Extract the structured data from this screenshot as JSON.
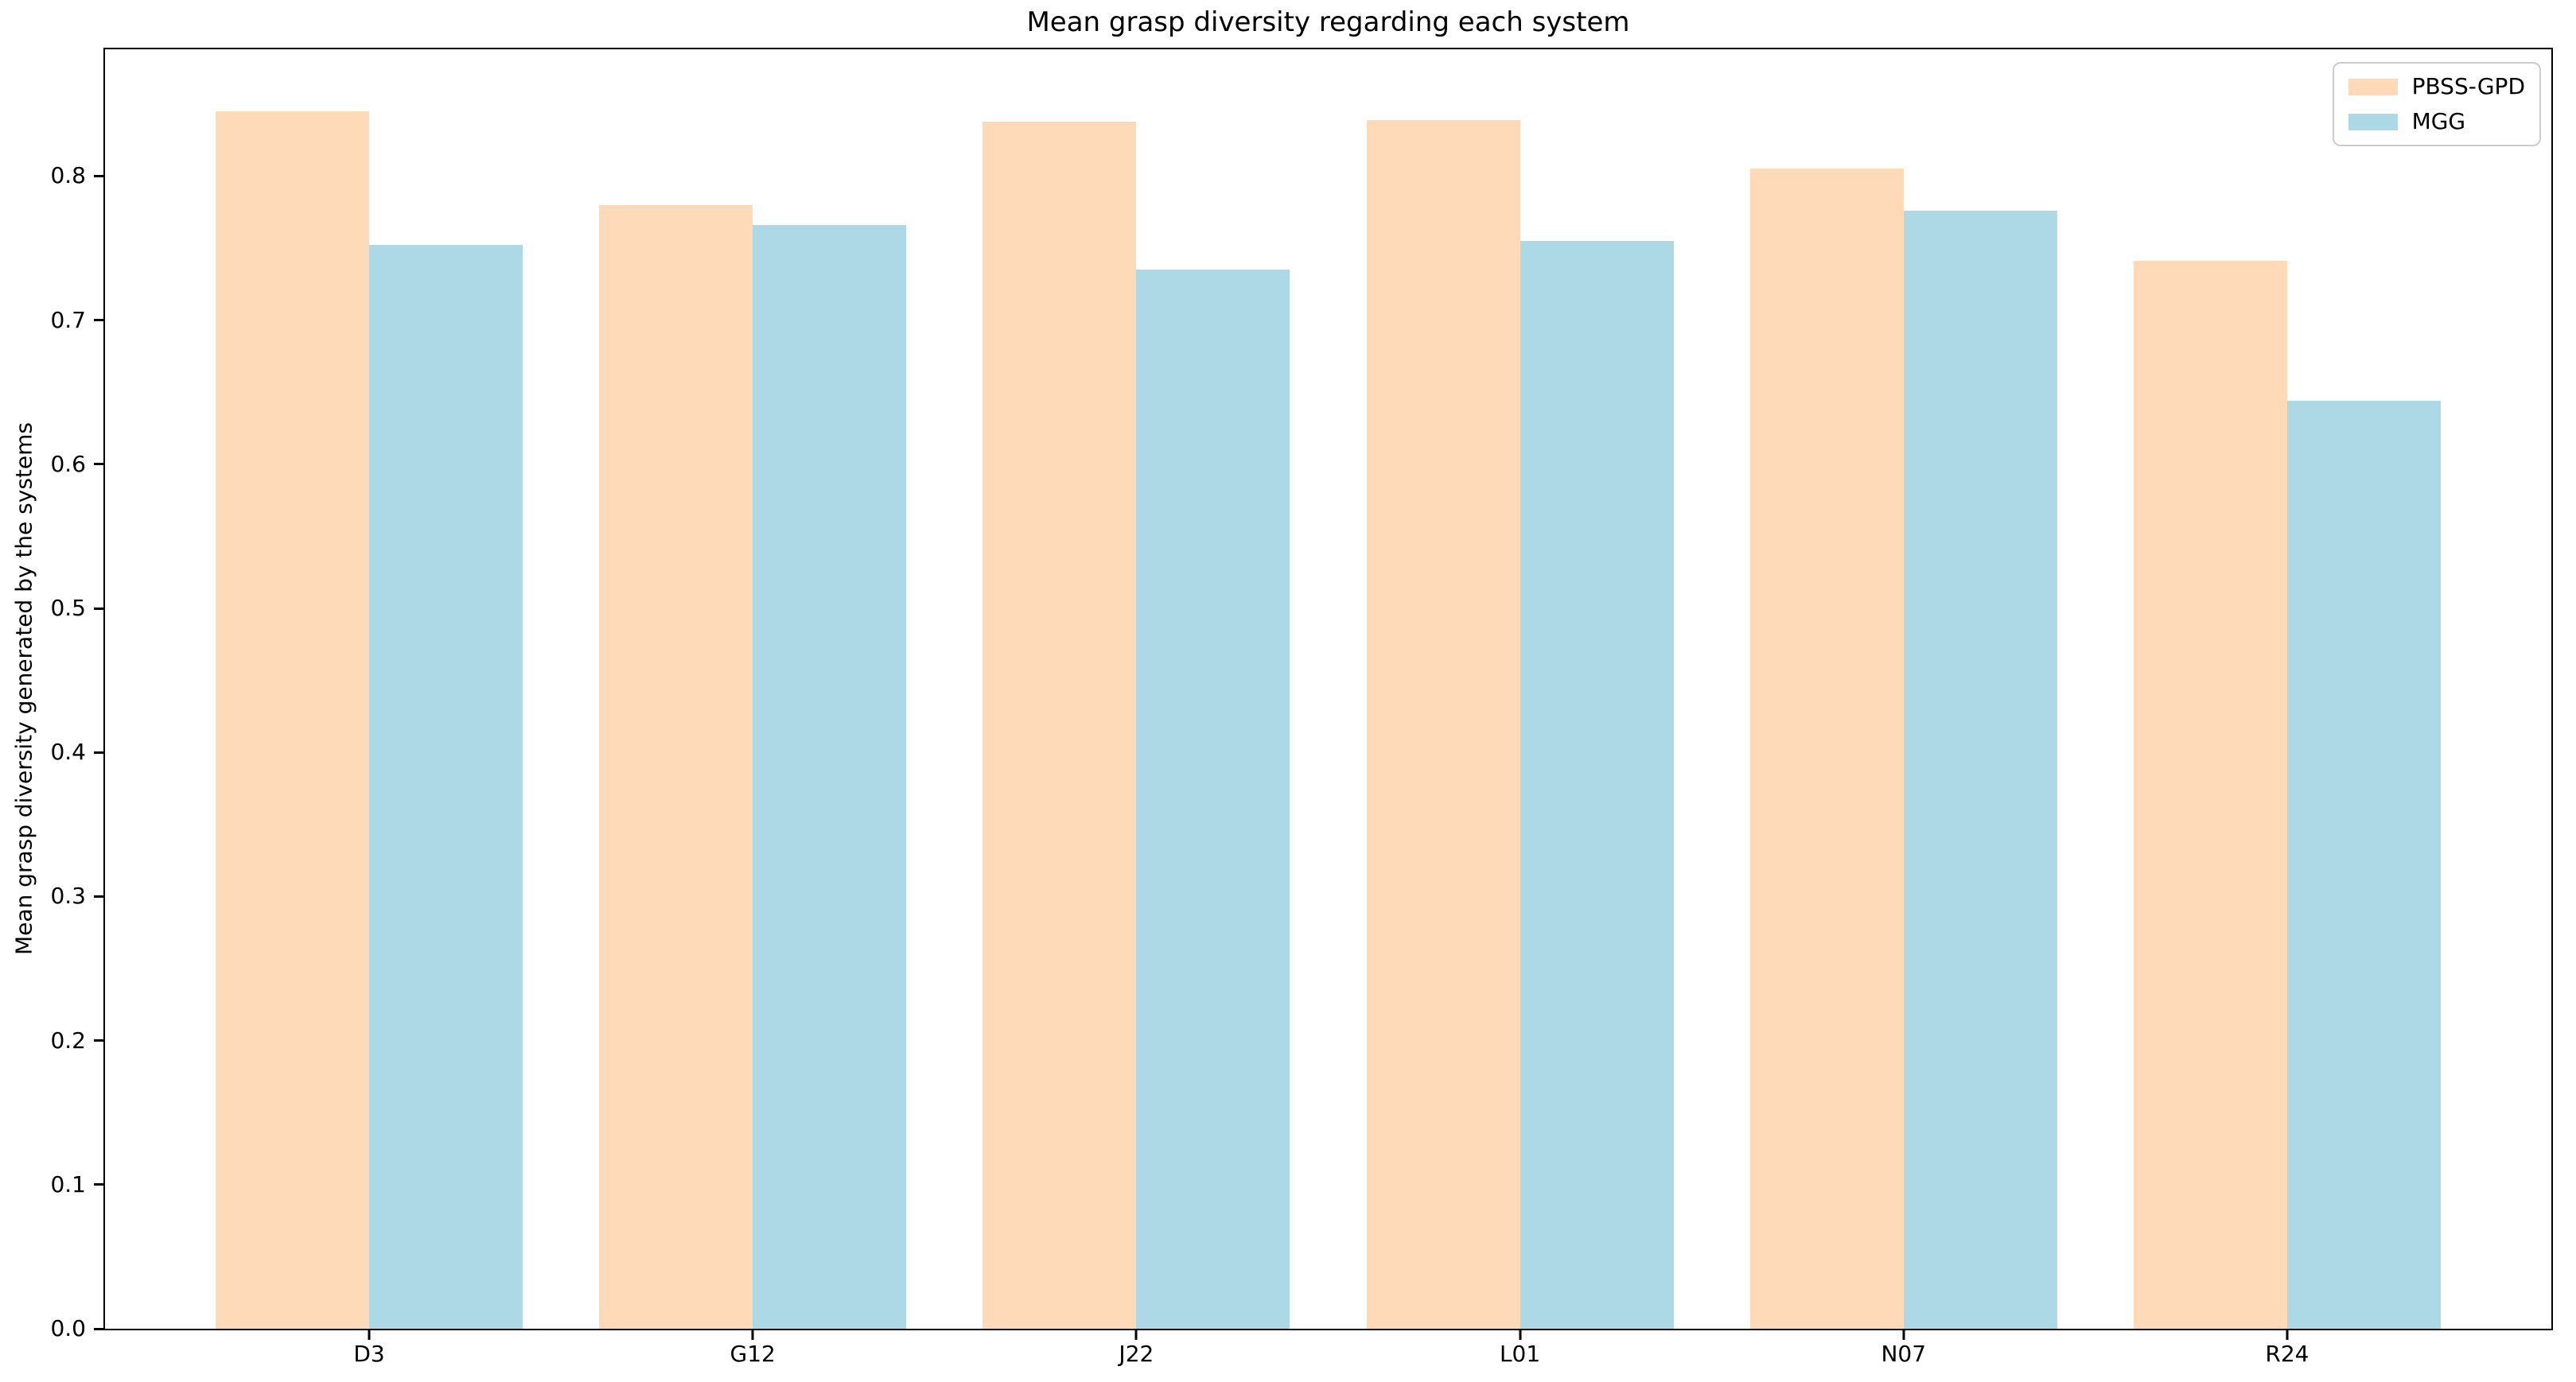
{
  "chart_data": {
    "type": "bar",
    "title": "Mean grasp diversity regarding each system",
    "xlabel": "",
    "ylabel": "Mean grasp diversity generated by the systems",
    "categories": [
      "D3",
      "G12",
      "J22",
      "L01",
      "N07",
      "R24"
    ],
    "series": [
      {
        "name": "PBSS-GPD",
        "color": "#FFDAB9",
        "values": [
          0.845,
          0.78,
          0.838,
          0.839,
          0.805,
          0.741
        ]
      },
      {
        "name": "MGG",
        "color": "#ADD8E6",
        "values": [
          0.752,
          0.766,
          0.735,
          0.755,
          0.776,
          0.644
        ]
      }
    ],
    "ylim": [
      0,
      0.888
    ],
    "y_ticks": [
      "0.0",
      "0.1",
      "0.2",
      "0.3",
      "0.4",
      "0.5",
      "0.6",
      "0.7",
      "0.8"
    ],
    "grid": false,
    "legend_position": "upper right"
  }
}
